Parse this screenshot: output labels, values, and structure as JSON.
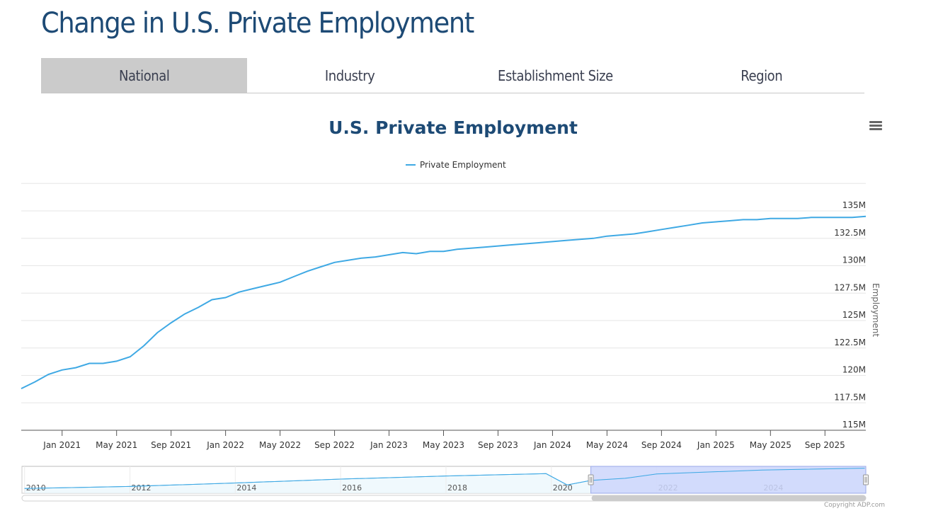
{
  "page": {
    "title": "Change in U.S. Private Employment"
  },
  "tabs": [
    {
      "label": "National",
      "active": true
    },
    {
      "label": "Industry",
      "active": false
    },
    {
      "label": "Establishment Size",
      "active": false
    },
    {
      "label": "Region",
      "active": false
    }
  ],
  "menu_icon": "hamburger-menu-icon",
  "copyright": "Copyright ADP.com",
  "colors": {
    "line": "#3fa9e4",
    "title": "#1d4a75",
    "active_tab": "#cbcbcb",
    "navigator_mask": "#ccd6fb"
  },
  "chart_data": {
    "type": "line",
    "title": "U.S. Private Employment",
    "xlabel": "",
    "ylabel": "Employment",
    "legend": {
      "position": "top-center",
      "entries": [
        "Private Employment"
      ]
    },
    "grid": true,
    "ylim": [
      115,
      137.5
    ],
    "y_unit": "M",
    "y_ticks": [
      "115M",
      "117.5M",
      "120M",
      "122.5M",
      "125M",
      "127.5M",
      "130M",
      "132.5M",
      "135M"
    ],
    "y_tick_values": [
      115,
      117.5,
      120,
      122.5,
      125,
      127.5,
      130,
      132.5,
      135
    ],
    "x_ticks": [
      "Jan 2021",
      "May 2021",
      "Sep 2021",
      "Jan 2022",
      "May 2022",
      "Sep 2022",
      "Jan 2023",
      "May 2023",
      "Sep 2023",
      "Jan 2024",
      "May 2024",
      "Sep 2024",
      "Jan 2025",
      "May 2025",
      "Sep 2025"
    ],
    "x_start": "Oct 2020",
    "x_end": "Dec 2025",
    "series": [
      {
        "name": "Private Employment",
        "x": [
          "Oct 2020",
          "Nov 2020",
          "Dec 2020",
          "Jan 2021",
          "Feb 2021",
          "Mar 2021",
          "Apr 2021",
          "May 2021",
          "Jun 2021",
          "Jul 2021",
          "Aug 2021",
          "Sep 2021",
          "Oct 2021",
          "Nov 2021",
          "Dec 2021",
          "Jan 2022",
          "Feb 2022",
          "Mar 2022",
          "Apr 2022",
          "May 2022",
          "Jun 2022",
          "Jul 2022",
          "Aug 2022",
          "Sep 2022",
          "Oct 2022",
          "Nov 2022",
          "Dec 2022",
          "Jan 2023",
          "Feb 2023",
          "Mar 2023",
          "Apr 2023",
          "May 2023",
          "Jun 2023",
          "Jul 2023",
          "Aug 2023",
          "Sep 2023",
          "Oct 2023",
          "Nov 2023",
          "Dec 2023",
          "Jan 2024",
          "Feb 2024",
          "Mar 2024",
          "Apr 2024",
          "May 2024",
          "Jun 2024",
          "Jul 2024",
          "Aug 2024",
          "Sep 2024",
          "Oct 2024",
          "Nov 2024",
          "Dec 2024",
          "Jan 2025",
          "Feb 2025",
          "Mar 2025",
          "Apr 2025",
          "May 2025",
          "Jun 2025",
          "Jul 2025",
          "Aug 2025",
          "Sep 2025",
          "Oct 2025",
          "Nov 2025",
          "Dec 2025"
        ],
        "values": [
          118.8,
          119.4,
          120.1,
          120.5,
          120.7,
          121.1,
          121.1,
          121.3,
          121.7,
          122.7,
          123.9,
          124.8,
          125.6,
          126.2,
          126.9,
          127.1,
          127.6,
          127.9,
          128.2,
          128.5,
          129.0,
          129.5,
          129.9,
          130.3,
          130.5,
          130.7,
          130.8,
          131.0,
          131.2,
          131.1,
          131.3,
          131.3,
          131.5,
          131.6,
          131.7,
          131.8,
          131.9,
          132.0,
          132.1,
          132.2,
          132.3,
          132.4,
          132.5,
          132.7,
          132.8,
          132.9,
          133.1,
          133.3,
          133.5,
          133.7,
          133.9,
          134.0,
          134.1,
          134.2,
          134.2,
          134.3,
          134.3,
          134.3,
          134.4,
          134.4,
          134.4,
          134.4,
          134.5
        ]
      }
    ],
    "navigator": {
      "x_ticks": [
        "2010",
        "2012",
        "2014",
        "2016",
        "2018",
        "2020",
        "2022",
        "2024"
      ],
      "range_start": "Oct 2020",
      "range_end": "Dec 2025",
      "series_summary": [
        {
          "year": 2010,
          "value": 108.5
        },
        {
          "year": 2012,
          "value": 111.0
        },
        {
          "year": 2014,
          "value": 115.5
        },
        {
          "year": 2016,
          "value": 120.5
        },
        {
          "year": 2018,
          "value": 124.5
        },
        {
          "year": 2019.9,
          "value": 127.5
        },
        {
          "year": 2020.3,
          "value": 113.0
        },
        {
          "year": 2020.75,
          "value": 118.8
        },
        {
          "year": 2021.4,
          "value": 121.5
        },
        {
          "year": 2022,
          "value": 127.1
        },
        {
          "year": 2024,
          "value": 132.2
        },
        {
          "year": 2025.95,
          "value": 134.5
        }
      ]
    }
  }
}
